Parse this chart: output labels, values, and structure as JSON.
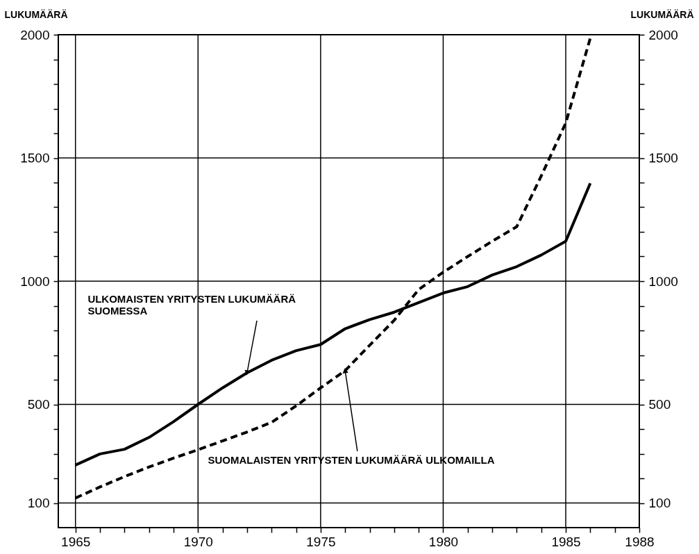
{
  "chart_data": {
    "type": "line",
    "ylabel": "LUKUMÄÄRÄ",
    "y2label": "LUKUMÄÄRÄ",
    "x": [
      1965,
      1966,
      1967,
      1968,
      1969,
      1970,
      1971,
      1972,
      1973,
      1974,
      1975,
      1976,
      1977,
      1978,
      1979,
      1980,
      1981,
      1982,
      1983,
      1984,
      1985,
      1986
    ],
    "series": [
      {
        "name": "ULKOMAISTEN YRITYSTEN LUKUMÄÄRÄ SUOMESSA",
        "color": "#000000",
        "line_style": "solid",
        "values": [
          254,
          299,
          318,
          366,
          430,
          500,
          567,
          628,
          679,
          718,
          743,
          807,
          844,
          874,
          913,
          952,
          978,
          1025,
          1059,
          1106,
          1162,
          1397
        ]
      },
      {
        "name": "SUOMALAISTEN YRITYSTEN LUKUMÄÄRÄ ULKOMAILLA",
        "color": "#000000",
        "line_style": "dashed",
        "axis": "y2",
        "values": [
          120,
          165,
          207,
          246,
          282,
          316,
          352,
          388,
          427,
          494,
          567,
          637,
          740,
          841,
          966,
          1036,
          1100,
          1162,
          1221,
          1427,
          1642,
          1986
        ]
      }
    ],
    "xlim": [
      1964.3,
      1988
    ],
    "xticks": [
      1965,
      {
        "value": 1966,
        "label": null
      },
      {
        "value": 1967,
        "label": null
      },
      {
        "value": 1968,
        "label": null
      },
      {
        "value": 1969,
        "label": null
      },
      1970,
      {
        "value": 1971,
        "label": null
      },
      {
        "value": 1972,
        "label": null
      },
      {
        "value": 1973,
        "label": null
      },
      {
        "value": 1974,
        "label": null
      },
      1975,
      {
        "value": 1976,
        "label": null
      },
      {
        "value": 1977,
        "label": null
      },
      {
        "value": 1978,
        "label": null
      },
      {
        "value": 1979,
        "label": null
      },
      1980,
      {
        "value": 1981,
        "label": null
      },
      {
        "value": 1982,
        "label": null
      },
      {
        "value": 1983,
        "label": null
      },
      {
        "value": 1984,
        "label": null
      },
      1985,
      {
        "value": 1986,
        "label": null
      },
      {
        "value": 1987,
        "label": null
      },
      1988
    ],
    "ylim": [
      0,
      2000
    ],
    "yticks": [
      100,
      {
        "value": 200,
        "label": null
      },
      {
        "value": 300,
        "label": null
      },
      {
        "value": 400,
        "label": null
      },
      500,
      {
        "value": 600,
        "label": null
      },
      {
        "value": 700,
        "label": null
      },
      {
        "value": 800,
        "label": null
      },
      {
        "value": 900,
        "label": null
      },
      1000,
      {
        "value": 1100,
        "label": null
      },
      {
        "value": 1200,
        "label": null
      },
      {
        "value": 1300,
        "label": null
      },
      {
        "value": 1400,
        "label": null
      },
      1500,
      {
        "value": 1600,
        "label": null
      },
      {
        "value": 1700,
        "label": null
      },
      {
        "value": 1800,
        "label": null
      },
      {
        "value": 1900,
        "label": null
      },
      2000
    ],
    "y2lim": [
      0,
      2000
    ],
    "y2ticks": [
      100,
      {
        "value": 200,
        "label": null
      },
      {
        "value": 300,
        "label": null
      },
      {
        "value": 400,
        "label": null
      },
      500,
      {
        "value": 600,
        "label": null
      },
      {
        "value": 700,
        "label": null
      },
      {
        "value": 800,
        "label": null
      },
      {
        "value": 900,
        "label": null
      },
      1000,
      {
        "value": 1100,
        "label": null
      },
      {
        "value": 1200,
        "label": null
      },
      {
        "value": 1300,
        "label": null
      },
      {
        "value": 1400,
        "label": null
      },
      1500,
      {
        "value": 1600,
        "label": null
      },
      {
        "value": 1700,
        "label": null
      },
      {
        "value": 1800,
        "label": null
      },
      {
        "value": 1900,
        "label": null
      },
      2000
    ],
    "grid": true,
    "marker": "none"
  }
}
